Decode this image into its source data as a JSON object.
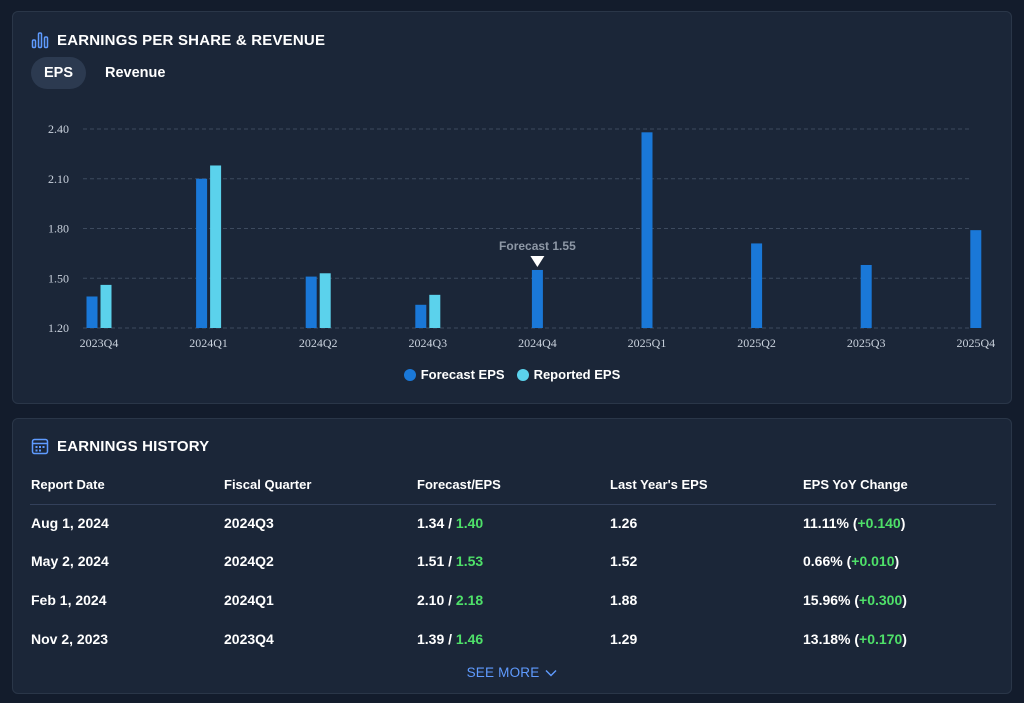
{
  "chart_section": {
    "title": "EARNINGS PER SHARE & REVENUE",
    "icon": "bar-chart-icon",
    "tabs": [
      {
        "label": "EPS",
        "active": true
      },
      {
        "label": "Revenue",
        "active": false
      }
    ],
    "annotation": {
      "text": "Forecast 1.55",
      "category": "2024Q4"
    }
  },
  "chart_data": {
    "type": "bar",
    "categories": [
      "2023Q4",
      "2024Q1",
      "2024Q2",
      "2024Q3",
      "2024Q4",
      "2025Q1",
      "2025Q2",
      "2025Q3",
      "2025Q4"
    ],
    "series": [
      {
        "name": "Forecast EPS",
        "color": "#1a78d8",
        "values": [
          1.39,
          2.1,
          1.51,
          1.34,
          1.55,
          2.38,
          1.71,
          1.58,
          1.79
        ]
      },
      {
        "name": "Reported EPS",
        "color": "#5bd2ec",
        "values": [
          1.46,
          2.18,
          1.53,
          1.4,
          null,
          null,
          null,
          null,
          null
        ]
      }
    ],
    "yticks": [
      "1.20",
      "1.50",
      "1.80",
      "2.10",
      "2.40"
    ],
    "ylim": [
      1.2,
      2.4
    ],
    "grid": true,
    "legend_position": "bottom-center"
  },
  "history_section": {
    "title": "EARNINGS HISTORY",
    "icon": "calendar-icon",
    "columns": [
      "Report Date",
      "Fiscal Quarter",
      "Forecast/EPS",
      "Last Year's EPS",
      "EPS YoY Change"
    ],
    "rows": [
      {
        "date": "Aug 1, 2024",
        "quarter": "2024Q3",
        "forecast": "1.34",
        "reported": "1.40",
        "last_year": "1.26",
        "yoy_pct": "11.11%",
        "yoy_abs": "+0.140"
      },
      {
        "date": "May 2, 2024",
        "quarter": "2024Q2",
        "forecast": "1.51",
        "reported": "1.53",
        "last_year": "1.52",
        "yoy_pct": "0.66%",
        "yoy_abs": "+0.010"
      },
      {
        "date": "Feb 1, 2024",
        "quarter": "2024Q1",
        "forecast": "2.10",
        "reported": "2.18",
        "last_year": "1.88",
        "yoy_pct": "15.96%",
        "yoy_abs": "+0.300"
      },
      {
        "date": "Nov 2, 2023",
        "quarter": "2023Q4",
        "forecast": "1.39",
        "reported": "1.46",
        "last_year": "1.29",
        "yoy_pct": "13.18%",
        "yoy_abs": "+0.170"
      }
    ],
    "see_more_label": "SEE MORE",
    "see_more_icon": "chevron-down-icon"
  },
  "colors": {
    "background": "#131c2c",
    "card": "#1b2638",
    "accent_blue": "#5f9bff",
    "positive_green": "#4ee069"
  }
}
